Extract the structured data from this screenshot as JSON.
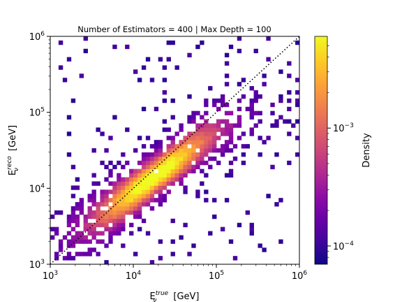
{
  "chart_data": {
    "type": "heatmap",
    "title": "Number of Estimators = 400 | Max Depth = 100",
    "xlabel": {
      "base": "E",
      "sub": "ν",
      "sup": "true",
      "unit": " [GeV]"
    },
    "ylabel": {
      "base": "E",
      "sub": "ν",
      "sup": "reco",
      "unit": " [GeV]"
    },
    "xscale": "log",
    "yscale": "log",
    "xlim": [
      1000,
      1000000
    ],
    "ylim": [
      1000,
      1000000
    ],
    "x_ticks": [
      {
        "value": 1000,
        "base": "10",
        "exp": "3"
      },
      {
        "value": 10000,
        "base": "10",
        "exp": "4"
      },
      {
        "value": 100000,
        "base": "10",
        "exp": "5"
      },
      {
        "value": 1000000,
        "base": "10",
        "exp": "6"
      }
    ],
    "y_ticks": [
      {
        "value": 1000,
        "base": "10",
        "exp": "3"
      },
      {
        "value": 10000,
        "base": "10",
        "exp": "4"
      },
      {
        "value": 100000,
        "base": "10",
        "exp": "5"
      },
      {
        "value": 1000000,
        "base": "10",
        "exp": "6"
      }
    ],
    "reference_line": {
      "style": "dotted",
      "color": "#000000",
      "from": [
        1000,
        1000
      ],
      "to": [
        1000000,
        1000000
      ]
    },
    "colorbar": {
      "label": "Density",
      "scale": "log",
      "colormap": "plasma",
      "range": [
        7e-05,
        0.006
      ],
      "ticks": [
        {
          "value": 0.0001,
          "base": "10",
          "exp": "−4"
        },
        {
          "value": 0.001,
          "base": "10",
          "exp": "−3"
        }
      ]
    },
    "bins": {
      "x_bins": 60,
      "y_bins": 55,
      "x_log_range": [
        3,
        6
      ],
      "y_log_range": [
        3,
        6
      ]
    },
    "density_model": {
      "note": "2D histogram of reconstructed vs true neutrino energy; peak density near E_true≈1.5e4–4e4 GeV, reco slightly below diagonal at high energy",
      "ridge_log_points": [
        [
          3.0,
          3.25
        ],
        [
          3.5,
          3.55
        ],
        [
          4.0,
          3.95
        ],
        [
          4.5,
          4.35
        ],
        [
          5.0,
          4.75
        ],
        [
          5.5,
          5.0
        ],
        [
          6.0,
          5.1
        ]
      ],
      "peak_log_x": 4.25,
      "peak_density": 0.006,
      "floor_density": 7e-05
    }
  }
}
